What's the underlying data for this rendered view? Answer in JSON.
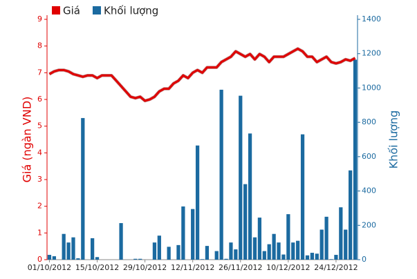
{
  "chart_data": {
    "type": "combo",
    "categories": [
      "01/10/2012",
      null,
      null,
      null,
      null,
      null,
      null,
      null,
      null,
      null,
      "15/10/2012",
      null,
      null,
      null,
      null,
      null,
      null,
      null,
      null,
      null,
      "29/10/2012",
      null,
      null,
      null,
      null,
      null,
      null,
      null,
      null,
      null,
      "12/11/2012",
      null,
      null,
      null,
      null,
      null,
      null,
      null,
      null,
      null,
      "26/11/2012",
      null,
      null,
      null,
      null,
      null,
      null,
      null,
      null,
      null,
      "10/12/2012",
      null,
      null,
      null,
      null,
      null,
      null,
      null,
      null,
      null,
      "24/12/2012",
      null,
      null,
      null,
      null
    ],
    "series": [
      {
        "name": "Giá",
        "type": "line",
        "axis": "y",
        "color": "#e00000",
        "values": [
          6.95,
          7.05,
          7.1,
          7.1,
          7.05,
          6.95,
          6.9,
          6.85,
          6.9,
          6.9,
          6.8,
          6.9,
          6.9,
          6.9,
          6.7,
          6.5,
          6.3,
          6.1,
          6.05,
          6.1,
          5.95,
          6.0,
          6.1,
          6.3,
          6.4,
          6.4,
          6.6,
          6.7,
          6.9,
          6.8,
          7.0,
          7.1,
          7.0,
          7.2,
          7.2,
          7.2,
          7.4,
          7.5,
          7.6,
          7.8,
          7.7,
          7.6,
          7.7,
          7.5,
          7.7,
          7.6,
          7.4,
          7.6,
          7.6,
          7.6,
          7.7,
          7.8,
          7.9,
          7.8,
          7.6,
          7.6,
          7.4,
          7.5,
          7.6,
          7.4,
          7.35,
          7.4,
          7.5,
          7.45,
          7.55
        ]
      },
      {
        "name": "Khối lượng",
        "type": "bar",
        "axis": "y2",
        "color": "#1b6aa0",
        "values": [
          28,
          20,
          0,
          150,
          100,
          130,
          8,
          825,
          0,
          125,
          15,
          0,
          0,
          0,
          0,
          213,
          0,
          0,
          5,
          5,
          0,
          0,
          100,
          140,
          0,
          75,
          0,
          85,
          310,
          0,
          295,
          665,
          3,
          80,
          0,
          50,
          990,
          5,
          100,
          60,
          955,
          440,
          735,
          130,
          245,
          50,
          90,
          150,
          100,
          30,
          265,
          100,
          110,
          730,
          25,
          40,
          35,
          175,
          250,
          3,
          28,
          305,
          175,
          520,
          1165
        ]
      }
    ],
    "y_label": "Giá (ngàn VND)",
    "y2_label": "Khối lượng",
    "ylim": [
      0,
      9
    ],
    "yticks": [
      0,
      1,
      2,
      3,
      4,
      5,
      6,
      7,
      8,
      9
    ],
    "y2lim": [
      0,
      1400
    ],
    "y2ticks": [
      0,
      200,
      400,
      600,
      800,
      1000,
      1200,
      1400
    ],
    "legend": "top-left",
    "grid": false
  }
}
